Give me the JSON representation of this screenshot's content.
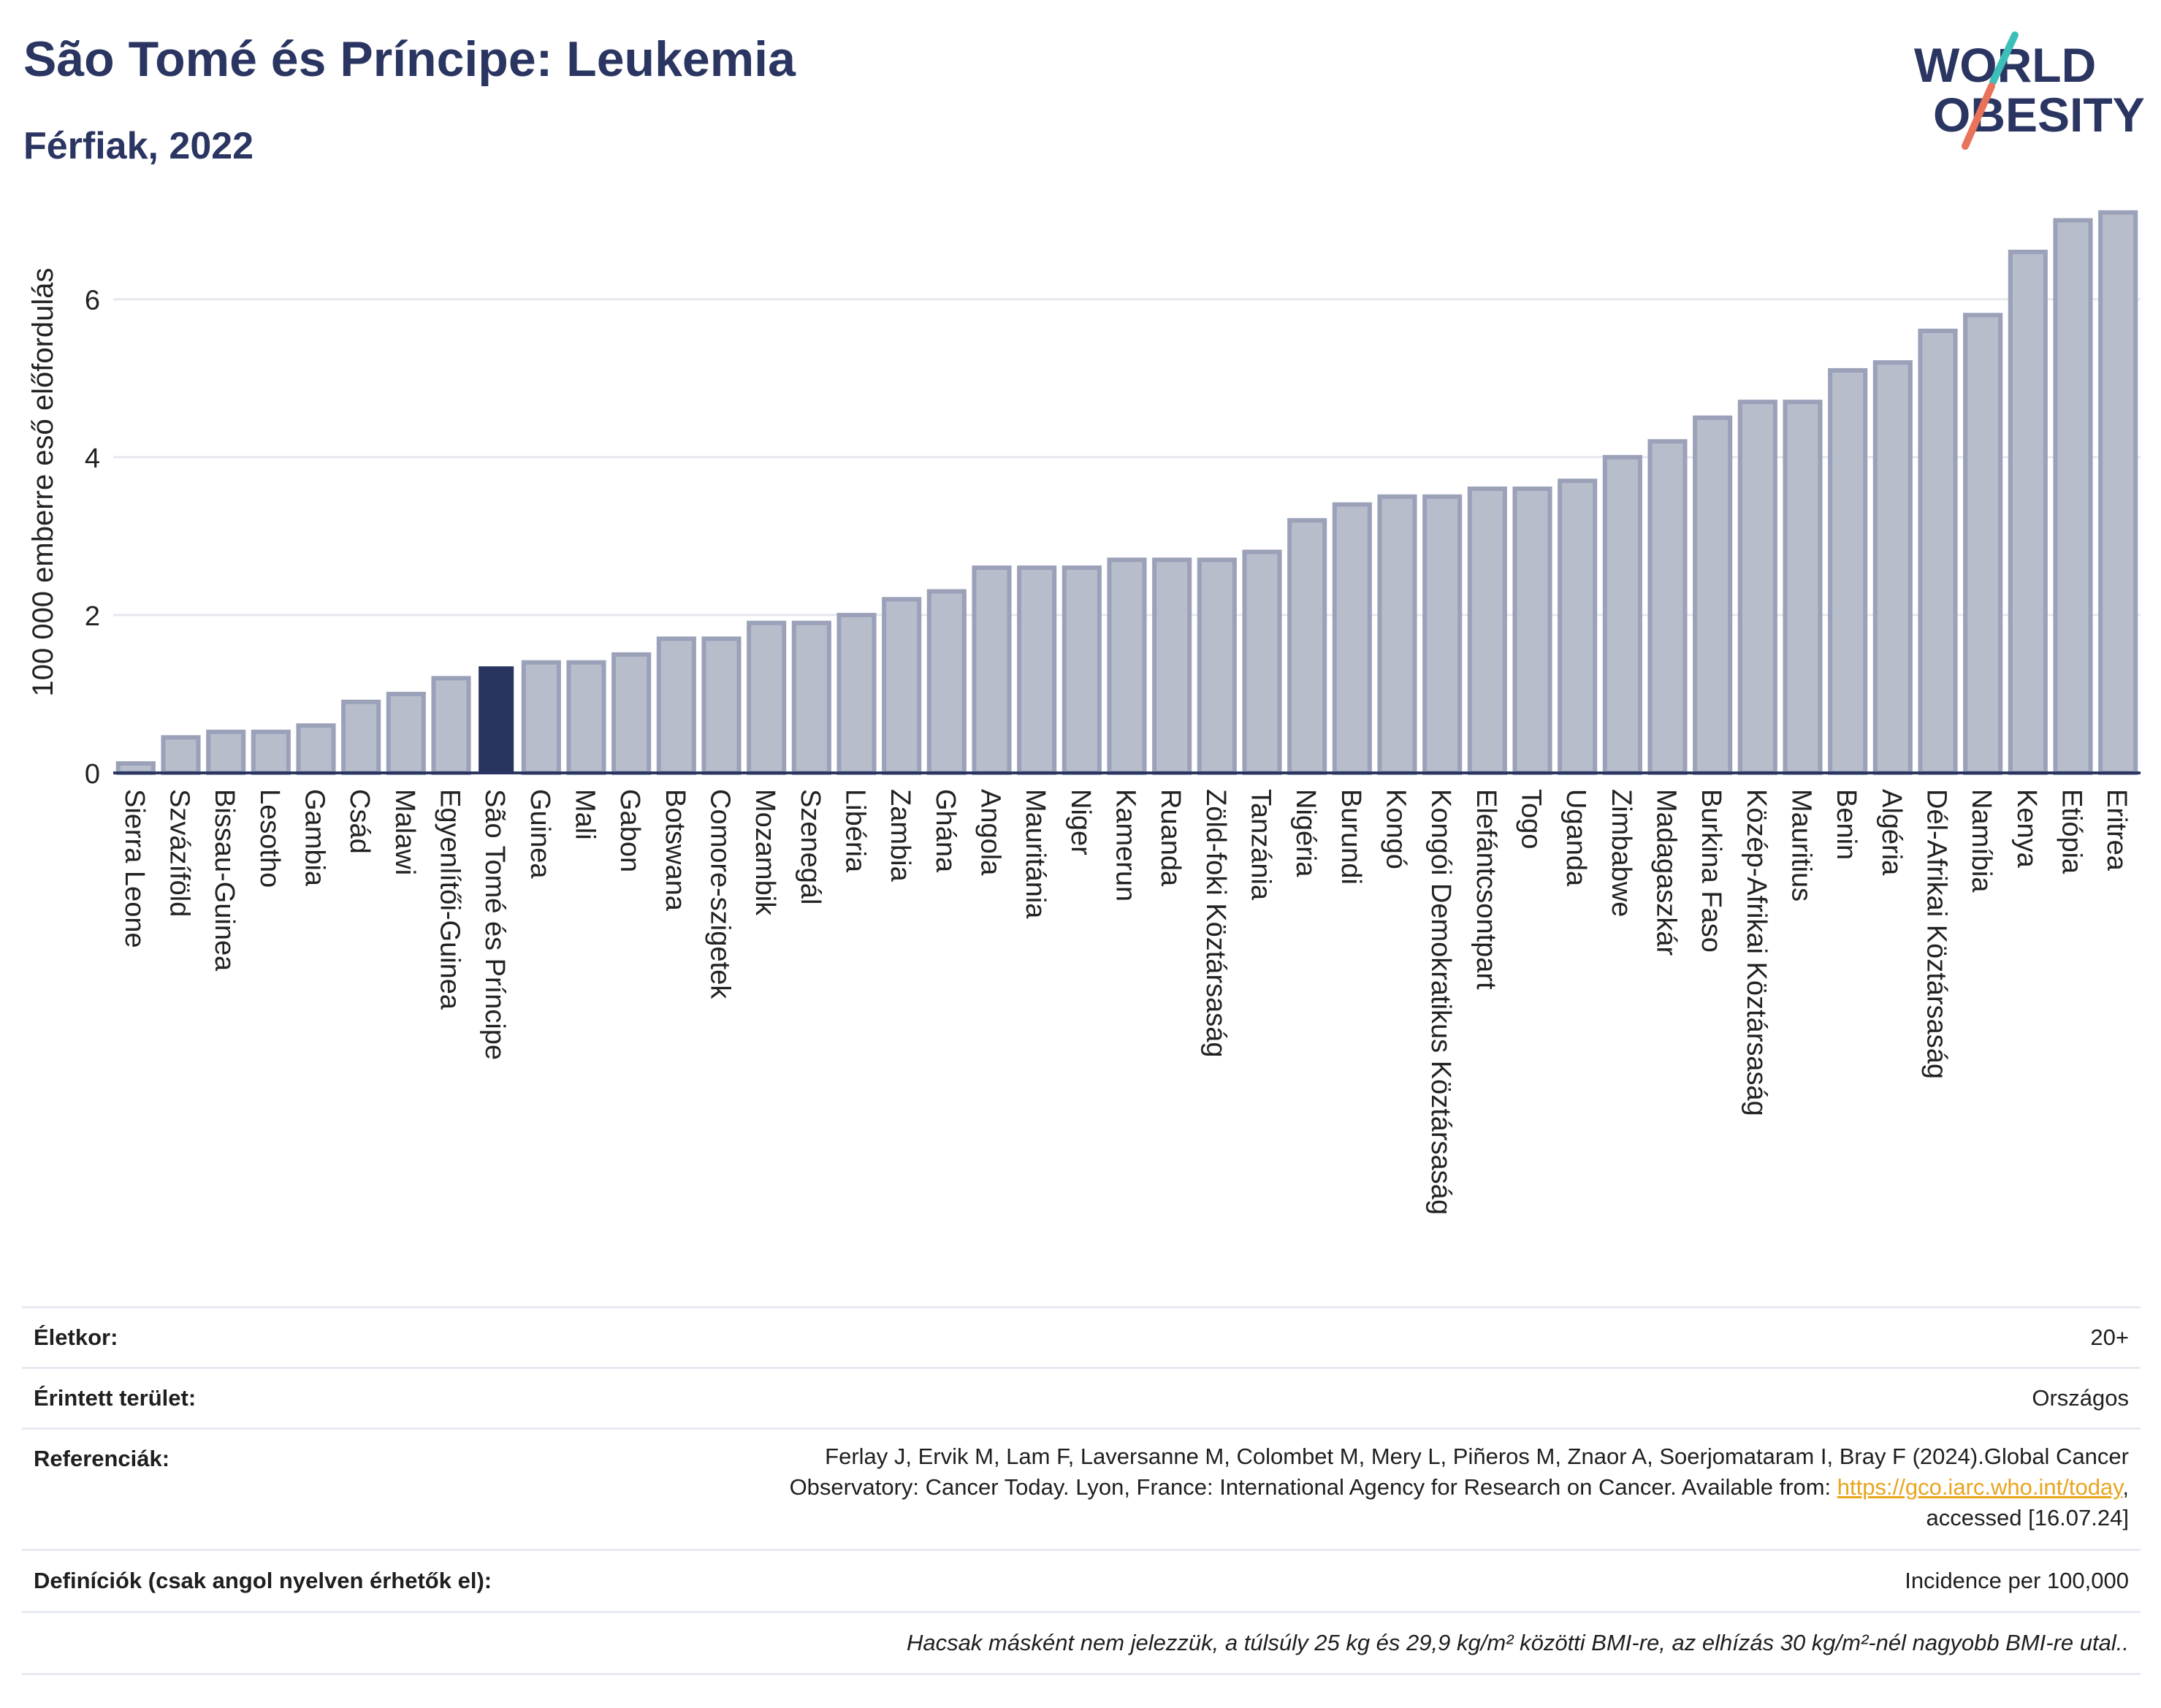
{
  "header": {
    "title": "São Tomé és Príncipe: Leukemia",
    "subtitle": "Férfiak, 2022"
  },
  "logo": {
    "line1": "WORLD",
    "line2": "OBESITY"
  },
  "chart_data": {
    "type": "bar",
    "ylabel": "100 000 emberre eső előfordulás",
    "xlabel": "",
    "ylim": [
      0,
      7.2
    ],
    "yticks": [
      0,
      2,
      4,
      6
    ],
    "grid": true,
    "highlight": "São Tomé és Príncipe",
    "colors": {
      "bar": "#b8bdcc",
      "bar_border": "#9aa1b8",
      "highlight": "#29355f",
      "axis": "#2a3561",
      "grid": "#e6e8ee"
    },
    "categories": [
      "Sierra Leone",
      "Szvázíföld",
      "Bissau-Guinea",
      "Lesotho",
      "Gambia",
      "Csád",
      "Malawi",
      "Egyenlítői-Guinea",
      "São Tomé és Príncipe",
      "Guinea",
      "Mali",
      "Gabon",
      "Botswana",
      "Comore-szigetek",
      "Mozambik",
      "Szenegál",
      "Libéria",
      "Zambia",
      "Ghána",
      "Angola",
      "Mauritánia",
      "Niger",
      "Kamerun",
      "Ruanda",
      "Zöld-foki Köztársaság",
      "Tanzánia",
      "Nigéria",
      "Burundi",
      "Kongó",
      "Kongói Demokratikus Köztársaság",
      "Elefántcsontpart",
      "Togo",
      "Uganda",
      "Zimbabwe",
      "Madagaszkár",
      "Burkina Faso",
      "Közép-Afrikai Köztársaság",
      "Mauritius",
      "Benin",
      "Algéria",
      "Dél-Afrikai Köztársaság",
      "Namíbia",
      "Kenya",
      "Etiópia",
      "Eritrea"
    ],
    "values": [
      0.12,
      0.45,
      0.52,
      0.52,
      0.6,
      0.9,
      1.0,
      1.2,
      1.35,
      1.4,
      1.4,
      1.5,
      1.7,
      1.7,
      1.9,
      1.9,
      2.0,
      2.2,
      2.3,
      2.6,
      2.6,
      2.6,
      2.7,
      2.7,
      2.7,
      2.8,
      3.2,
      3.4,
      3.5,
      3.5,
      3.6,
      3.6,
      3.7,
      4.0,
      4.2,
      4.5,
      4.7,
      4.7,
      5.1,
      5.2,
      5.6,
      5.8,
      6.6,
      7.0,
      7.1
    ]
  },
  "meta": {
    "age_label": "Életkor:",
    "age_value": "20+",
    "area_label": "Érintett terület:",
    "area_value": "Országos",
    "ref_label": "Referenciák:",
    "ref_line1": "Ferlay J, Ervik M, Lam F, Laversanne M, Colombet M, Mery L, Piñeros M, Znaor A, Soerjomataram I, Bray F (2024).Global Cancer",
    "ref_line2": "Observatory: Cancer Today. Lyon, France: International Agency for Research on Cancer. Available from: ",
    "ref_link": "https://gco.iarc.who.int/today",
    "ref_line2_end": ",",
    "ref_line3": "accessed [16.07.24]",
    "def_label": "Definíciók (csak angol nyelven érhetők el):",
    "def_value": "Incidence per 100,000",
    "note": "Hacsak másként nem jelezzük, a túlsúly 25 kg és 29,9 kg/m² közötti BMI-re, az elhízás 30 kg/m²-nél nagyobb BMI-re utal.."
  }
}
